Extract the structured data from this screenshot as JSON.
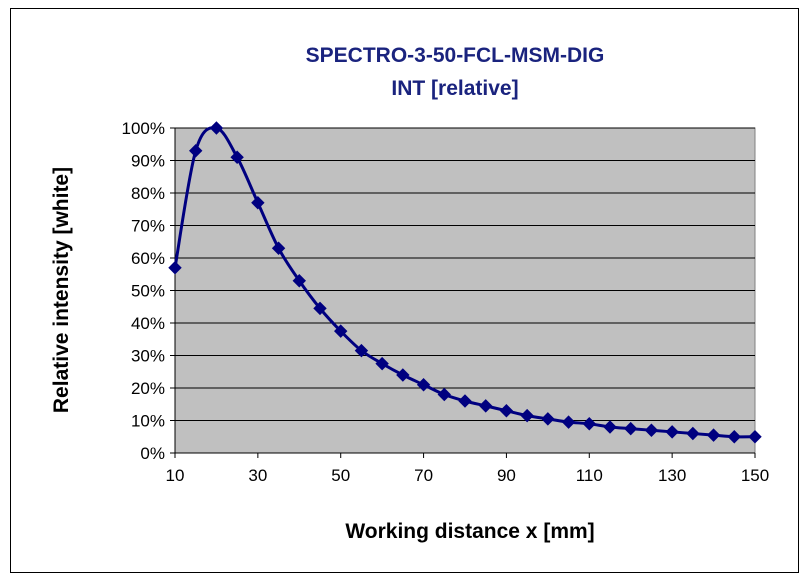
{
  "chart_data": {
    "type": "line",
    "title_lines": [
      "SPECTRO-3-50-FCL-MSM-DIG",
      "INT [relative]"
    ],
    "xlabel": "Working distance x [mm]",
    "ylabel": "Relative intensity [white]",
    "xlim": [
      10,
      150
    ],
    "ylim": [
      0,
      100
    ],
    "x_ticks": [
      10,
      30,
      50,
      70,
      90,
      110,
      130,
      150
    ],
    "y_ticks": [
      0,
      10,
      20,
      30,
      40,
      50,
      60,
      70,
      80,
      90,
      100
    ],
    "y_tick_labels": [
      "0%",
      "10%",
      "20%",
      "30%",
      "40%",
      "50%",
      "60%",
      "70%",
      "80%",
      "90%",
      "100%"
    ],
    "grid": "horizontal",
    "plot_background": "#c0c0c0",
    "line_color": "#000080",
    "legend": "none",
    "series": [
      {
        "x": [
          10,
          15,
          20,
          25,
          30,
          35,
          40,
          45,
          50,
          55,
          60,
          65,
          70,
          75,
          80,
          85,
          90,
          95,
          100,
          105,
          110,
          115,
          120,
          125,
          130,
          135,
          140,
          145,
          150
        ],
        "values": [
          57,
          93,
          100,
          91,
          77,
          63,
          53,
          44.5,
          37.5,
          31.5,
          27.5,
          24,
          21,
          18,
          16,
          14.5,
          13,
          11.5,
          10.5,
          9.5,
          9,
          8,
          7.5,
          7,
          6.5,
          6,
          5.5,
          5,
          5
        ]
      }
    ]
  }
}
